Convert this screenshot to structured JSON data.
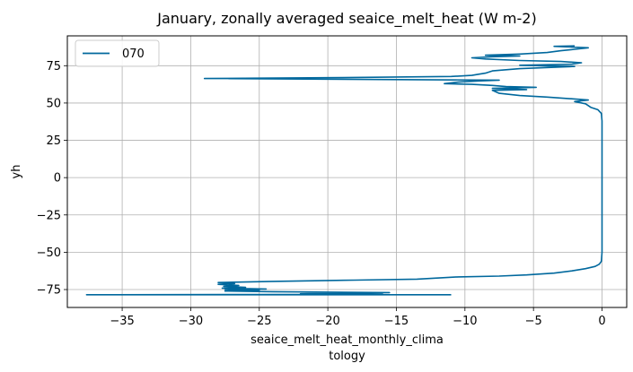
{
  "chart_data": {
    "type": "line",
    "title": "January, zonally averaged seaice_melt_heat (W m-2)",
    "xlabel_lines": [
      "seaice_melt_heat_monthly_clima",
      "tology"
    ],
    "ylabel": "yh",
    "xlim": [
      -39,
      1.8
    ],
    "ylim": [
      -87,
      95
    ],
    "xticks": [
      -35,
      -30,
      -25,
      -20,
      -15,
      -10,
      -5,
      0
    ],
    "xtick_labels": [
      "−35",
      "−30",
      "−25",
      "−20",
      "−15",
      "−10",
      "−5",
      "0"
    ],
    "yticks": [
      -75,
      -50,
      -25,
      0,
      25,
      50,
      75
    ],
    "ytick_labels": [
      "−75",
      "−50",
      "−25",
      "0",
      "25",
      "50",
      "75"
    ],
    "grid": true,
    "legend_position": "top-left",
    "colors": {
      "line": "#00689d",
      "grid": "#b0b0b0",
      "axis": "#000000",
      "legend_border": "#cccccc"
    },
    "series": [
      {
        "name": "070",
        "points": [
          [
            -11.0,
            -78.5
          ],
          [
            -37.6,
            -78.5
          ],
          [
            -16.0,
            -78.2
          ],
          [
            -22.0,
            -77.8
          ],
          [
            -15.5,
            -77.0
          ],
          [
            -24.0,
            -76.4
          ],
          [
            -27.5,
            -76.0
          ],
          [
            -25.0,
            -75.5
          ],
          [
            -27.5,
            -75.0
          ],
          [
            -24.5,
            -74.6
          ],
          [
            -27.7,
            -74.0
          ],
          [
            -26.0,
            -73.5
          ],
          [
            -27.6,
            -72.8
          ],
          [
            -26.5,
            -72.2
          ],
          [
            -28.0,
            -71.5
          ],
          [
            -26.8,
            -71.0
          ],
          [
            -28.0,
            -70.3
          ],
          [
            -24.0,
            -69.5
          ],
          [
            -18.0,
            -68.7
          ],
          [
            -13.5,
            -68.0
          ],
          [
            -10.5,
            -66.5
          ],
          [
            -7.5,
            -66.0
          ],
          [
            -5.5,
            -65.2
          ],
          [
            -3.5,
            -64.0
          ],
          [
            -2.2,
            -62.5
          ],
          [
            -1.2,
            -61.0
          ],
          [
            -0.5,
            -59.5
          ],
          [
            -0.2,
            -58.0
          ],
          [
            -0.05,
            -56.0
          ],
          [
            0.0,
            -50.0
          ],
          [
            0.0,
            -25.0
          ],
          [
            0.0,
            0.0
          ],
          [
            0.0,
            25.0
          ],
          [
            0.0,
            38.0
          ],
          [
            -0.05,
            43.0
          ],
          [
            -0.3,
            45.5
          ],
          [
            -0.8,
            47.0
          ],
          [
            -1.2,
            49.5
          ],
          [
            -2.0,
            51.0
          ],
          [
            -1.0,
            52.0
          ],
          [
            -2.5,
            53.0
          ],
          [
            -4.0,
            54.0
          ],
          [
            -6.0,
            55.0
          ],
          [
            -7.5,
            56.5
          ],
          [
            -8.0,
            58.5
          ],
          [
            -5.5,
            59.0
          ],
          [
            -8.0,
            59.8
          ],
          [
            -4.8,
            60.5
          ],
          [
            -7.0,
            61.0
          ],
          [
            -8.0,
            61.8
          ],
          [
            -9.5,
            62.5
          ],
          [
            -11.5,
            63.0
          ],
          [
            -10.5,
            64.0
          ],
          [
            -9.0,
            64.8
          ],
          [
            -7.5,
            65.3
          ],
          [
            -29.0,
            66.4
          ],
          [
            -19.0,
            67.0
          ],
          [
            -11.0,
            67.8
          ],
          [
            -9.5,
            68.5
          ],
          [
            -8.5,
            70.0
          ],
          [
            -8.0,
            71.5
          ],
          [
            -6.0,
            73.0
          ],
          [
            -2.0,
            74.5
          ],
          [
            -6.0,
            75.3
          ],
          [
            -2.2,
            76.0
          ],
          [
            -1.5,
            77.0
          ],
          [
            -3.0,
            77.8
          ],
          [
            -6.0,
            78.5
          ],
          [
            -8.5,
            79.5
          ],
          [
            -9.5,
            80.3
          ],
          [
            -8.0,
            81.0
          ],
          [
            -6.0,
            81.5
          ],
          [
            -8.5,
            82.0
          ],
          [
            -6.0,
            82.8
          ],
          [
            -4.0,
            83.8
          ],
          [
            -3.0,
            85.0
          ],
          [
            -2.0,
            86.0
          ],
          [
            -1.0,
            87.0
          ],
          [
            -3.5,
            88.0
          ],
          [
            -2.0,
            88.3
          ]
        ]
      }
    ]
  }
}
